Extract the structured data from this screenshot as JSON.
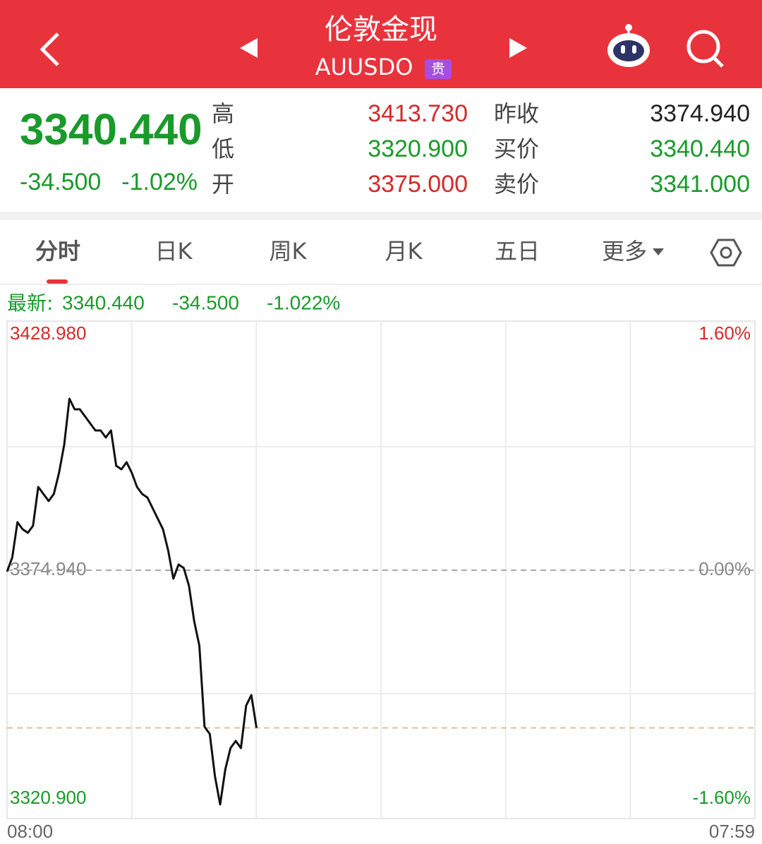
{
  "header": {
    "title": "伦敦金现",
    "code": "AUUSDO",
    "badge": "贵"
  },
  "quote": {
    "price": "3340.440",
    "change": "-34.500",
    "change_pct": "-1.02%",
    "rows": [
      [
        "高",
        "3413.730",
        "昨收",
        "3374.940"
      ],
      [
        "低",
        "3320.900",
        "买价",
        "3340.440"
      ],
      [
        "开",
        "3375.000",
        "卖价",
        "3341.000"
      ]
    ]
  },
  "tabs": [
    "分时",
    "日K",
    "周K",
    "月K",
    "五日",
    "更多"
  ],
  "latest": {
    "label": "最新:",
    "price": "3340.440",
    "change": "-34.500",
    "change_pct": "-1.022%"
  },
  "chart_data": {
    "type": "line",
    "x": [
      0,
      10,
      20,
      30,
      40,
      50,
      60,
      70,
      80,
      90,
      100,
      110,
      120,
      130,
      140,
      150,
      160,
      170,
      180,
      190,
      200,
      210,
      220,
      230,
      240,
      250,
      260,
      270,
      280,
      290,
      300,
      310,
      320,
      330,
      340,
      350,
      360,
      370,
      380,
      390,
      400,
      410,
      420,
      430,
      440,
      450,
      460,
      470,
      480
    ],
    "values": [
      3374.63,
      3377.72,
      3385.44,
      3383.9,
      3383.12,
      3384.67,
      3393.16,
      3391.62,
      3390.07,
      3391.62,
      3396.25,
      3402.42,
      3412.46,
      3410.14,
      3410.14,
      3408.6,
      3407.06,
      3405.51,
      3405.51,
      3403.97,
      3405.51,
      3397.79,
      3397.02,
      3398.56,
      3396.25,
      3393.16,
      3391.62,
      3390.84,
      3388.53,
      3386.21,
      3383.9,
      3379.26,
      3373.09,
      3376.18,
      3375.4,
      3371.54,
      3363.82,
      3358.42,
      3340.66,
      3339.12,
      3329.86,
      3323.68,
      3331.4,
      3336.03,
      3337.58,
      3336.03,
      3345.3,
      3347.61,
      3340.44
    ],
    "color": "#111111",
    "xlim": [
      0,
      1439
    ],
    "xticks": [
      {
        "value": 0,
        "label": "08:00"
      },
      {
        "value": 1439,
        "label": "07:59"
      }
    ],
    "ylim": [
      3320.9,
      3428.98
    ],
    "yticks": [
      {
        "value": 3320.9,
        "label": "3320.900"
      },
      {
        "value": 3374.94,
        "label": "3374.940"
      },
      {
        "value": 3428.98,
        "label": "3428.980"
      }
    ],
    "y2lim": [
      -1.6,
      1.6
    ],
    "y2ticks": [
      {
        "value": -1.6,
        "label": "-1.60%"
      },
      {
        "value": 0,
        "label": "0.00%"
      },
      {
        "value": 1.6,
        "label": "1.60%"
      }
    ]
  }
}
